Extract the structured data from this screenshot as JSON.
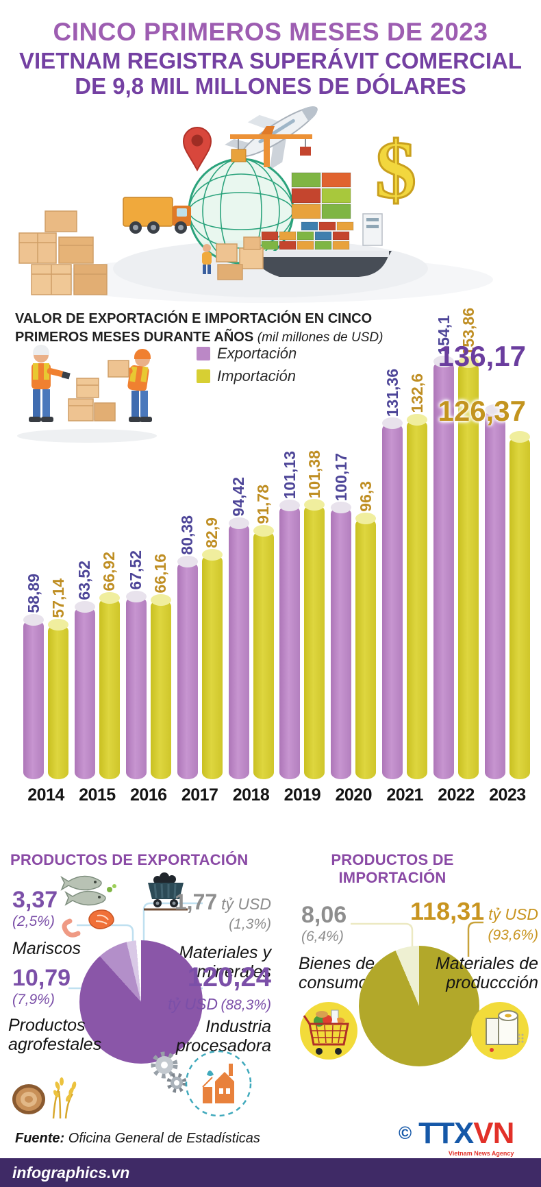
{
  "header": {
    "line1": "CINCO PRIMEROS MESES DE 2023",
    "line2": "VIETNAM REGISTRA SUPERÁVIT COMERCIAL",
    "line3": "DE 9,8 MIL MILLONES DE DÓLARES"
  },
  "chart_data": [
    {
      "id": "trade_bars",
      "type": "bar",
      "title": "VALOR DE EXPORTACIÓN E IMPORTACIÓN EN CINCO PRIMEROS MESES DURANTE AÑOS",
      "unit_note": "(mil millones de USD)",
      "categories": [
        "2014",
        "2015",
        "2016",
        "2017",
        "2018",
        "2019",
        "2020",
        "2021",
        "2022",
        "2023"
      ],
      "series": [
        {
          "name": "Exportación",
          "color": "#bb88c6",
          "values": [
            58.89,
            63.52,
            67.52,
            80.38,
            94.42,
            101.13,
            100.17,
            131.36,
            154.1,
            136.17
          ],
          "labels": [
            "58,89",
            "63,52",
            "67,52",
            "80,38",
            "94,42",
            "101,13",
            "100,17",
            "131,36",
            "154,1",
            "136,17"
          ]
        },
        {
          "name": "Importación",
          "color": "#d7cf33",
          "values": [
            57.14,
            66.92,
            66.16,
            82.9,
            91.78,
            101.38,
            96.3,
            132.6,
            153.86,
            126.37
          ],
          "labels": [
            "57,14",
            "66,92",
            "66,16",
            "82,9",
            "91,78",
            "101,38",
            "96,3",
            "132,6",
            "153,86",
            "126,37"
          ]
        }
      ],
      "ylim": [
        0,
        160
      ],
      "grid": false,
      "legend_position": "top-center",
      "big_label_year": "2023"
    },
    {
      "id": "export_pie",
      "type": "pie",
      "title": "PRODUCTOS DE EXPORTACIÓN",
      "slices": [
        {
          "label": "Industria procesadora",
          "value": "120,24",
          "unit": "tỷ USD",
          "share": "(88,3%)",
          "pct": 88.3,
          "color": "#8a56a8"
        },
        {
          "label": "Productos agrofestales",
          "value": "10,79",
          "unit": "",
          "share": "(7,9%)",
          "pct": 7.9,
          "color": "#b38fc9"
        },
        {
          "label": "Mariscos",
          "value": "3,37",
          "unit": "",
          "share": "(2,5%)",
          "pct": 2.5,
          "color": "#d9c9e6"
        },
        {
          "label": "Materiales y minerales",
          "value": "1,77",
          "unit": "tỷ USD",
          "share": "(1,3%)",
          "pct": 1.3,
          "color": "#ffffff"
        }
      ]
    },
    {
      "id": "import_pie",
      "type": "pie",
      "title": "PRODUCTOS DE IMPORTACIÓN",
      "slices": [
        {
          "label": "Materiales de produccción",
          "value": "118,31",
          "unit": "tỷ USD",
          "share": "(93,6%)",
          "pct": 93.6,
          "color": "#b2a82a"
        },
        {
          "label": "Bienes de consumo",
          "value": "8,06",
          "unit": "",
          "share": "(6,4%)",
          "pct": 6.4,
          "color": "#eef0d2"
        }
      ]
    }
  ],
  "icons": {
    "hero": [
      "airplane-icon",
      "globe-icon",
      "location-pin-icon",
      "crane-icon",
      "containers-icon",
      "truck-icon",
      "cargo-ship-icon",
      "box-stack-icon",
      "dollar-icon"
    ],
    "chart": [
      "workers-icon"
    ],
    "export_items": [
      "seafood-icon",
      "coal-cart-icon",
      "wood-rice-icon",
      "gears-icon",
      "factory-dashed-circle-icon"
    ],
    "import_items": [
      "grocery-cart-icon",
      "paper-roll-icon"
    ]
  },
  "colors": {
    "title_primary": "#9d5db1",
    "title_secondary": "#7440a2",
    "export_bar": "#bb88c6",
    "import_bar": "#d7cf33",
    "export_value_text": "#4d4598",
    "import_value_text": "#bf8e23",
    "section_title": "#8a4aa5",
    "footer_bar": "#3f2a66"
  },
  "footer": {
    "source_label": "Fuente:",
    "source_text": " Oficina General de Estadísticas",
    "copyright": "©",
    "logo": {
      "part1": "TTX",
      "part2": "VN",
      "subtitle": "Vietnam News Agency"
    },
    "site": "infographics.vn"
  }
}
